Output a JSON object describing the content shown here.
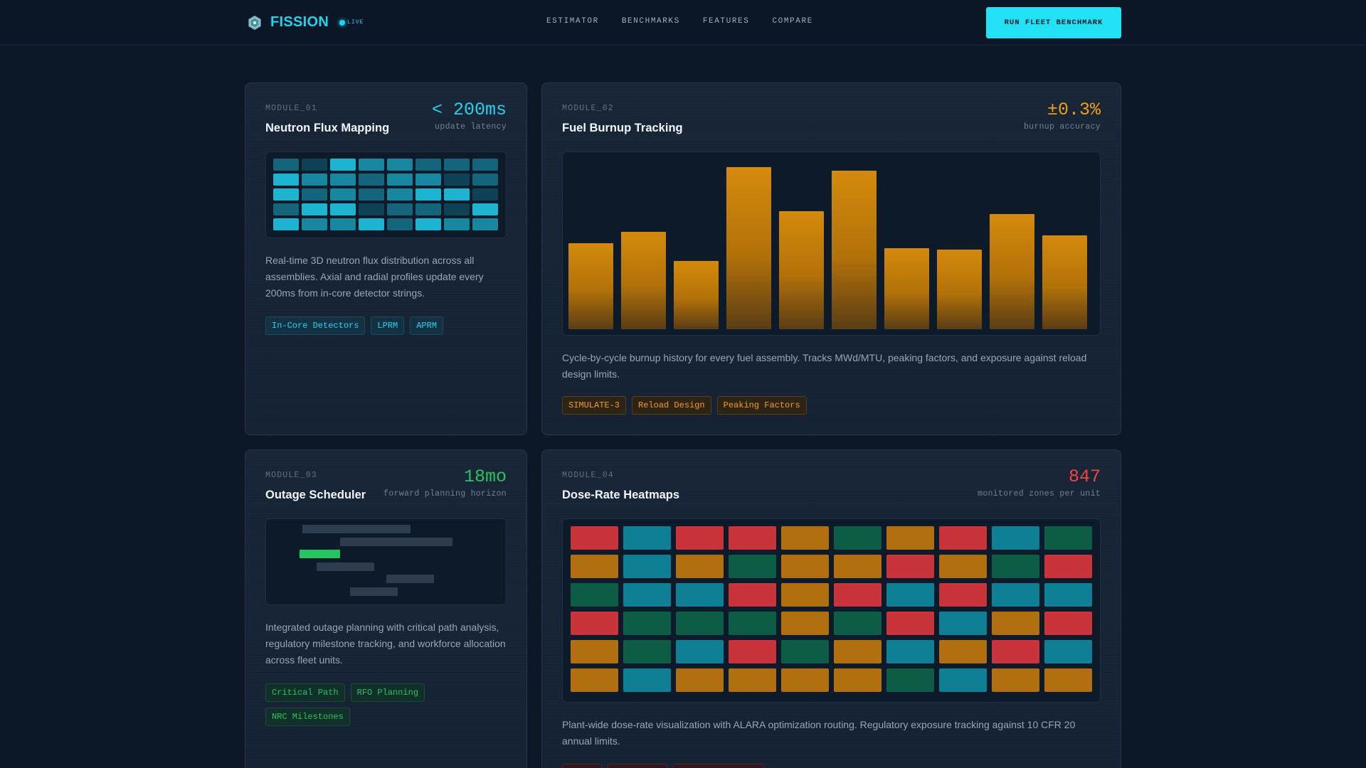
{
  "header": {
    "brand": "FISSION",
    "live_label": "LIVE",
    "nav": [
      "ESTIMATOR",
      "BENCHMARKS",
      "FEATURES",
      "COMPARE"
    ],
    "cta_label": "RUN FLEET BENCHMARK"
  },
  "colors": {
    "accent": "#22d3ee",
    "amber": "#f59e0b",
    "green": "#22c55e",
    "red": "#ef4444",
    "background": "#0c1828"
  },
  "cards": [
    {
      "id": "MODULE_01",
      "title": "Neutron Flux Mapping",
      "metric_value": "< 200ms",
      "metric_label": "update latency",
      "description": "Real-time 3D neutron flux distribution across all assemblies. Axial and radial profiles update every 200ms from in-core detector strings.",
      "tags": [
        "In-Core Detectors",
        "LPRM",
        "APRM"
      ],
      "accent": "cyan"
    },
    {
      "id": "MODULE_02",
      "title": "Fuel Burnup Tracking",
      "metric_value": "±0.3%",
      "metric_label": "burnup accuracy",
      "description": "Cycle-by-cycle burnup history for every fuel assembly. Tracks MWd/MTU, peaking factors, and exposure against reload design limits.",
      "tags": [
        "SIMULATE-3",
        "Reload Design",
        "Peaking Factors"
      ],
      "accent": "amber"
    },
    {
      "id": "MODULE_03",
      "title": "Outage Scheduler",
      "metric_value": "18mo",
      "metric_label": "forward planning horizon",
      "description": "Integrated outage planning with critical path analysis, regulatory milestone tracking, and workforce allocation across fleet units.",
      "tags": [
        "Critical Path",
        "RFO Planning",
        "NRC Milestones"
      ],
      "accent": "green"
    },
    {
      "id": "MODULE_04",
      "title": "Dose-Rate Heatmaps",
      "metric_value": "847",
      "metric_label": "monitored zones per unit",
      "description": "Plant-wide dose-rate visualization with ALARA optimization routing. Regulatory exposure tracking against 10 CFR 20 annual limits.",
      "tags": [],
      "accent": "red"
    }
  ],
  "flux_levels": [
    [
      1,
      0,
      3,
      2,
      2,
      1,
      1,
      1
    ],
    [
      3,
      2,
      2,
      1,
      2,
      2,
      0,
      1
    ],
    [
      3,
      1,
      2,
      1,
      2,
      3,
      3,
      0
    ],
    [
      1,
      3,
      3,
      0,
      1,
      1,
      0,
      3
    ],
    [
      3,
      2,
      2,
      3,
      1,
      3,
      2,
      2
    ]
  ],
  "burnup_levels": [
    0.53,
    0.6,
    0.42,
    1.0,
    0.73,
    0.98,
    0.5,
    0.49,
    0.71,
    0.58
  ],
  "outage_tasks": [
    {
      "start": 0.15,
      "length": 0.45,
      "active": false
    },
    {
      "start": 0.31,
      "length": 0.47,
      "active": false
    },
    {
      "start": 0.14,
      "length": 0.17,
      "active": true
    },
    {
      "start": 0.21,
      "length": 0.24,
      "active": false
    },
    {
      "start": 0.5,
      "length": 0.2,
      "active": false
    },
    {
      "start": 0.35,
      "length": 0.2,
      "active": false
    }
  ],
  "dose_zones": [
    [
      "r",
      "c",
      "r",
      "r",
      "a",
      "g",
      "a",
      "r",
      "c",
      "g"
    ],
    [
      "a",
      "c",
      "a",
      "g",
      "a",
      "a",
      "r",
      "a",
      "g",
      "r"
    ],
    [
      "g",
      "c",
      "c",
      "r",
      "a",
      "r",
      "c",
      "r",
      "c",
      "c"
    ],
    [
      "r",
      "g",
      "g",
      "g",
      "a",
      "g",
      "r",
      "c",
      "a",
      "r"
    ],
    [
      "a",
      "g",
      "c",
      "r",
      "g",
      "a",
      "c",
      "a",
      "r",
      "c"
    ],
    [
      "a",
      "c",
      "a",
      "a",
      "a",
      "a",
      "g",
      "c",
      "a",
      "a"
    ]
  ]
}
